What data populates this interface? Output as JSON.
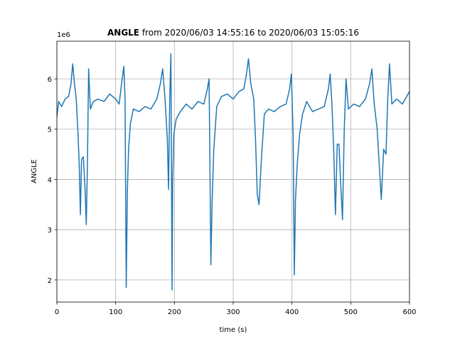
{
  "chart_data": {
    "type": "line",
    "title_bold": "ANGLE",
    "title": " from 2020/06/03 14:55:16 to 2020/06/03 15:05:16",
    "x_label": "time (s)",
    "y_label": "ANGLE",
    "offset_label": "1e6",
    "xlim": [
      0,
      600
    ],
    "ylim": [
      1.56,
      6.75
    ],
    "xticks": [
      0,
      100,
      200,
      300,
      400,
      500,
      600
    ],
    "yticks": [
      2,
      3,
      4,
      5,
      6
    ],
    "grid": true,
    "series": [
      {
        "name": "ANGLE",
        "color": "#1f77b4",
        "x": [
          0,
          3,
          8,
          14,
          20,
          24,
          27,
          30,
          33,
          36,
          38,
          40,
          42,
          45,
          48,
          50,
          52,
          54,
          57,
          62,
          70,
          80,
          90,
          100,
          106,
          110,
          114,
          116,
          118,
          120,
          122,
          125,
          130,
          140,
          150,
          160,
          170,
          176,
          180,
          184,
          188,
          190,
          192,
          194,
          196,
          197,
          199,
          203,
          210,
          220,
          230,
          240,
          250,
          256,
          259,
          262,
          264,
          267,
          272,
          280,
          290,
          300,
          310,
          318,
          322,
          326,
          330,
          335,
          338,
          341,
          344,
          348,
          353,
          360,
          370,
          380,
          390,
          396,
          399,
          402,
          404,
          406,
          409,
          413,
          418,
          425,
          435,
          445,
          455,
          462,
          465,
          468,
          471,
          474,
          477,
          480,
          483,
          486,
          489,
          492,
          496,
          505,
          515,
          525,
          532,
          536,
          540,
          545,
          549,
          552,
          556,
          560,
          563,
          566,
          570,
          578,
          588,
          600
        ],
        "values": [
          5.25,
          5.55,
          5.45,
          5.6,
          5.65,
          5.9,
          6.3,
          5.9,
          5.6,
          4.9,
          4.3,
          3.3,
          4.4,
          4.45,
          3.8,
          3.1,
          4.3,
          6.2,
          5.4,
          5.55,
          5.6,
          5.55,
          5.7,
          5.6,
          5.5,
          5.9,
          6.25,
          5.6,
          1.85,
          3.8,
          4.6,
          5.1,
          5.4,
          5.35,
          5.45,
          5.4,
          5.6,
          5.9,
          6.2,
          5.6,
          4.8,
          3.8,
          5.6,
          6.5,
          1.8,
          3.9,
          4.9,
          5.2,
          5.35,
          5.5,
          5.4,
          5.55,
          5.5,
          5.8,
          6.0,
          2.3,
          3.5,
          4.6,
          5.45,
          5.65,
          5.7,
          5.6,
          5.75,
          5.8,
          6.05,
          6.4,
          5.9,
          5.6,
          4.8,
          3.7,
          3.5,
          4.4,
          5.3,
          5.4,
          5.35,
          5.45,
          5.5,
          5.8,
          6.1,
          4.9,
          2.1,
          3.6,
          4.3,
          4.9,
          5.3,
          5.55,
          5.35,
          5.4,
          5.45,
          5.8,
          6.1,
          5.5,
          4.6,
          3.3,
          4.7,
          4.7,
          3.9,
          3.2,
          5.0,
          6.0,
          5.4,
          5.5,
          5.45,
          5.6,
          5.9,
          6.2,
          5.5,
          5.0,
          4.2,
          3.6,
          4.6,
          4.5,
          5.6,
          6.3,
          5.5,
          5.6,
          5.5,
          5.75
        ]
      }
    ]
  }
}
